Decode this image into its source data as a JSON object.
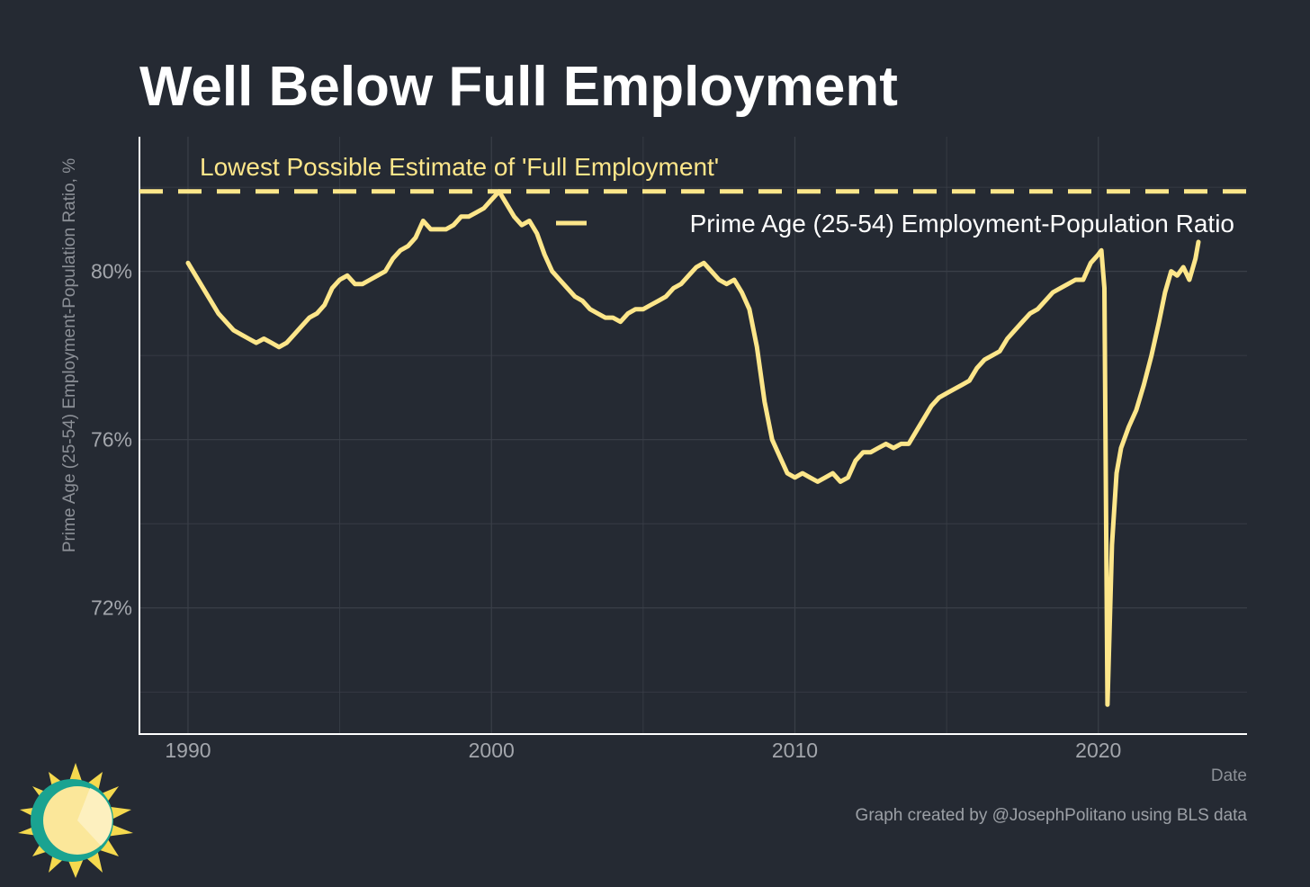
{
  "chart_data": {
    "type": "line",
    "title": "Well Below Full Employment",
    "xlabel": "Date",
    "ylabel": "Prime Age (25-54) Employment-Population Ratio, %",
    "xlim": [
      1988.4,
      2024.9
    ],
    "ylim": [
      69.0,
      83.2
    ],
    "x_ticks": [
      1990,
      2000,
      2010,
      2020
    ],
    "x_tick_labels": [
      "1990",
      "2000",
      "2010",
      "2020"
    ],
    "y_ticks": [
      72,
      76,
      80
    ],
    "y_tick_labels": [
      "72%",
      "76%",
      "80%"
    ],
    "grid": true,
    "legend_position": "top-right",
    "colors": {
      "background": "#252a33",
      "series": "#fde68a",
      "grid": "#3a3f48",
      "axis": "#ffffff"
    },
    "reference_line": {
      "value": 81.9,
      "style": "dashed",
      "label": "Lowest Possible Estimate of 'Full Employment'"
    },
    "series": [
      {
        "name": "Prime Age (25-54) Employment-Population Ratio",
        "points": [
          [
            1990.0,
            80.2
          ],
          [
            1990.25,
            79.9
          ],
          [
            1990.5,
            79.6
          ],
          [
            1990.75,
            79.3
          ],
          [
            1991.0,
            79.0
          ],
          [
            1991.25,
            78.8
          ],
          [
            1991.5,
            78.6
          ],
          [
            1991.75,
            78.5
          ],
          [
            1992.0,
            78.4
          ],
          [
            1992.25,
            78.3
          ],
          [
            1992.5,
            78.4
          ],
          [
            1992.75,
            78.3
          ],
          [
            1993.0,
            78.2
          ],
          [
            1993.25,
            78.3
          ],
          [
            1993.5,
            78.5
          ],
          [
            1993.75,
            78.7
          ],
          [
            1994.0,
            78.9
          ],
          [
            1994.25,
            79.0
          ],
          [
            1994.5,
            79.2
          ],
          [
            1994.75,
            79.6
          ],
          [
            1995.0,
            79.8
          ],
          [
            1995.25,
            79.9
          ],
          [
            1995.5,
            79.7
          ],
          [
            1995.75,
            79.7
          ],
          [
            1996.0,
            79.8
          ],
          [
            1996.25,
            79.9
          ],
          [
            1996.5,
            80.0
          ],
          [
            1996.75,
            80.3
          ],
          [
            1997.0,
            80.5
          ],
          [
            1997.25,
            80.6
          ],
          [
            1997.5,
            80.8
          ],
          [
            1997.75,
            81.2
          ],
          [
            1998.0,
            81.0
          ],
          [
            1998.25,
            81.0
          ],
          [
            1998.5,
            81.0
          ],
          [
            1998.75,
            81.1
          ],
          [
            1999.0,
            81.3
          ],
          [
            1999.25,
            81.3
          ],
          [
            1999.5,
            81.4
          ],
          [
            1999.75,
            81.5
          ],
          [
            2000.0,
            81.7
          ],
          [
            2000.25,
            81.9
          ],
          [
            2000.5,
            81.6
          ],
          [
            2000.75,
            81.3
          ],
          [
            2001.0,
            81.1
          ],
          [
            2001.25,
            81.2
          ],
          [
            2001.5,
            80.9
          ],
          [
            2001.75,
            80.4
          ],
          [
            2002.0,
            80.0
          ],
          [
            2002.25,
            79.8
          ],
          [
            2002.5,
            79.6
          ],
          [
            2002.75,
            79.4
          ],
          [
            2003.0,
            79.3
          ],
          [
            2003.25,
            79.1
          ],
          [
            2003.5,
            79.0
          ],
          [
            2003.75,
            78.9
          ],
          [
            2004.0,
            78.9
          ],
          [
            2004.25,
            78.8
          ],
          [
            2004.5,
            79.0
          ],
          [
            2004.75,
            79.1
          ],
          [
            2005.0,
            79.1
          ],
          [
            2005.25,
            79.2
          ],
          [
            2005.5,
            79.3
          ],
          [
            2005.75,
            79.4
          ],
          [
            2006.0,
            79.6
          ],
          [
            2006.25,
            79.7
          ],
          [
            2006.5,
            79.9
          ],
          [
            2006.75,
            80.1
          ],
          [
            2007.0,
            80.2
          ],
          [
            2007.25,
            80.0
          ],
          [
            2007.5,
            79.8
          ],
          [
            2007.75,
            79.7
          ],
          [
            2008.0,
            79.8
          ],
          [
            2008.25,
            79.5
          ],
          [
            2008.5,
            79.1
          ],
          [
            2008.75,
            78.2
          ],
          [
            2009.0,
            76.9
          ],
          [
            2009.25,
            76.0
          ],
          [
            2009.5,
            75.6
          ],
          [
            2009.75,
            75.2
          ],
          [
            2010.0,
            75.1
          ],
          [
            2010.25,
            75.2
          ],
          [
            2010.5,
            75.1
          ],
          [
            2010.75,
            75.0
          ],
          [
            2011.0,
            75.1
          ],
          [
            2011.25,
            75.2
          ],
          [
            2011.5,
            75.0
          ],
          [
            2011.75,
            75.1
          ],
          [
            2012.0,
            75.5
          ],
          [
            2012.25,
            75.7
          ],
          [
            2012.5,
            75.7
          ],
          [
            2012.75,
            75.8
          ],
          [
            2013.0,
            75.9
          ],
          [
            2013.25,
            75.8
          ],
          [
            2013.5,
            75.9
          ],
          [
            2013.75,
            75.9
          ],
          [
            2014.0,
            76.2
          ],
          [
            2014.25,
            76.5
          ],
          [
            2014.5,
            76.8
          ],
          [
            2014.75,
            77.0
          ],
          [
            2015.0,
            77.1
          ],
          [
            2015.25,
            77.2
          ],
          [
            2015.5,
            77.3
          ],
          [
            2015.75,
            77.4
          ],
          [
            2016.0,
            77.7
          ],
          [
            2016.25,
            77.9
          ],
          [
            2016.5,
            78.0
          ],
          [
            2016.75,
            78.1
          ],
          [
            2017.0,
            78.4
          ],
          [
            2017.25,
            78.6
          ],
          [
            2017.5,
            78.8
          ],
          [
            2017.75,
            79.0
          ],
          [
            2018.0,
            79.1
          ],
          [
            2018.25,
            79.3
          ],
          [
            2018.5,
            79.5
          ],
          [
            2018.75,
            79.6
          ],
          [
            2019.0,
            79.7
          ],
          [
            2019.25,
            79.8
          ],
          [
            2019.5,
            79.8
          ],
          [
            2019.75,
            80.2
          ],
          [
            2020.0,
            80.4
          ],
          [
            2020.1,
            80.5
          ],
          [
            2020.2,
            79.6
          ],
          [
            2020.3,
            69.7
          ],
          [
            2020.45,
            73.5
          ],
          [
            2020.6,
            75.2
          ],
          [
            2020.75,
            75.8
          ],
          [
            2021.0,
            76.3
          ],
          [
            2021.25,
            76.7
          ],
          [
            2021.5,
            77.3
          ],
          [
            2021.75,
            78.0
          ],
          [
            2022.0,
            78.8
          ],
          [
            2022.2,
            79.5
          ],
          [
            2022.4,
            80.0
          ],
          [
            2022.6,
            79.9
          ],
          [
            2022.8,
            80.1
          ],
          [
            2023.0,
            79.8
          ],
          [
            2023.2,
            80.3
          ],
          [
            2023.3,
            80.7
          ]
        ]
      }
    ]
  },
  "footer": {
    "credit": "Graph created by @JosephPolitano using BLS data",
    "logo_icon": "sun-logo-icon"
  }
}
